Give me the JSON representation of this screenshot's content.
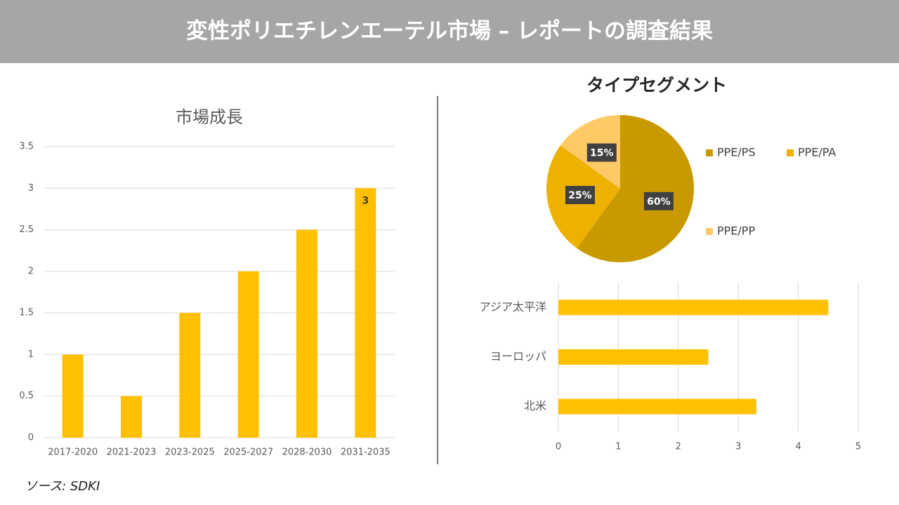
{
  "header": {
    "title": "変性ポリエチレンエーテル市場 – レポートの調査結果"
  },
  "chart_data": [
    {
      "type": "bar",
      "orientation": "vertical",
      "title": "市場成長",
      "categories": [
        "2017-2020",
        "2021-2023",
        "2023-2025",
        "2025-2027",
        "2028-2030",
        "2031-2035"
      ],
      "values": [
        1,
        0.5,
        1.5,
        2,
        2.5,
        3
      ],
      "value_labels": [
        null,
        null,
        null,
        null,
        null,
        "3"
      ],
      "color": "#ffc000",
      "ylim": [
        0,
        3.5
      ],
      "yticks": [
        0,
        0.5,
        1,
        1.5,
        2,
        2.5,
        3,
        3.5
      ],
      "grid": true
    },
    {
      "type": "pie",
      "title": "タイプセグメント",
      "categories": [
        "PPE/PS",
        "PPE/PA",
        "PPE/PP"
      ],
      "values": [
        60,
        25,
        15
      ],
      "value_labels": [
        "60%",
        "25%",
        "15%"
      ],
      "colors": [
        "#c99a00",
        "#edb100",
        "#ffc966"
      ],
      "legend": "right"
    },
    {
      "type": "bar",
      "orientation": "horizontal",
      "categories": [
        "アジア太平洋",
        "ヨーロッパ",
        "北米"
      ],
      "values": [
        4.5,
        2.5,
        3.3
      ],
      "color": "#ffc000",
      "xlim": [
        0,
        5
      ],
      "xticks": [
        0,
        1,
        2,
        3,
        4,
        5
      ],
      "grid": true
    }
  ],
  "source": "ソース: SDKI"
}
